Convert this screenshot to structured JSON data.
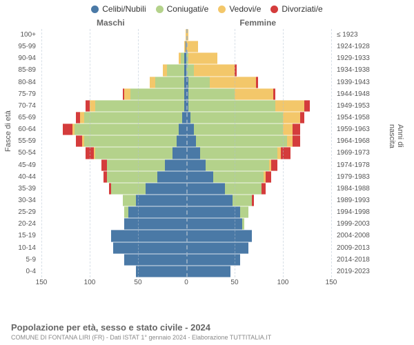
{
  "legend": [
    {
      "label": "Celibi/Nubili",
      "color": "#4a79a6"
    },
    {
      "label": "Coniugati/e",
      "color": "#b4d28b"
    },
    {
      "label": "Vedovi/e",
      "color": "#f3c76a"
    },
    {
      "label": "Divorziati/e",
      "color": "#d43c3c"
    }
  ],
  "genders": {
    "male": "Maschi",
    "female": "Femmine"
  },
  "axis_left_title": "Fasce di età",
  "axis_right_title": "Anni di nascita",
  "x_max": 150,
  "x_ticks": [
    150,
    100,
    50,
    0,
    50,
    100,
    150
  ],
  "grid_color": "#b0c0d0",
  "center_color": "#9fb4c8",
  "background": "#ffffff",
  "age_labels": [
    "100+",
    "95-99",
    "90-94",
    "85-89",
    "80-84",
    "75-79",
    "70-74",
    "65-69",
    "60-64",
    "55-59",
    "50-54",
    "45-49",
    "40-44",
    "35-39",
    "30-34",
    "25-29",
    "20-24",
    "15-19",
    "10-14",
    "5-9",
    "0-4"
  ],
  "birth_labels": [
    "≤ 1923",
    "1924-1928",
    "1929-1933",
    "1934-1938",
    "1939-1943",
    "1944-1948",
    "1949-1953",
    "1954-1958",
    "1959-1963",
    "1964-1968",
    "1969-1973",
    "1974-1978",
    "1979-1983",
    "1984-1988",
    "1989-1993",
    "1994-1998",
    "1999-2003",
    "2004-2008",
    "2009-2013",
    "2014-2018",
    "2019-2023"
  ],
  "rows": [
    {
      "male": [
        0,
        0,
        1,
        0
      ],
      "female": [
        0,
        0,
        2,
        0
      ]
    },
    {
      "male": [
        1,
        0,
        1,
        0
      ],
      "female": [
        0,
        0,
        12,
        0
      ]
    },
    {
      "male": [
        2,
        4,
        2,
        0
      ],
      "female": [
        0,
        2,
        30,
        0
      ]
    },
    {
      "male": [
        2,
        18,
        4,
        0
      ],
      "female": [
        0,
        8,
        42,
        2
      ]
    },
    {
      "male": [
        2,
        30,
        6,
        0
      ],
      "female": [
        2,
        22,
        48,
        2
      ]
    },
    {
      "male": [
        2,
        56,
        6,
        2
      ],
      "female": [
        2,
        48,
        40,
        2
      ]
    },
    {
      "male": [
        2,
        92,
        6,
        4
      ],
      "female": [
        2,
        90,
        30,
        6
      ]
    },
    {
      "male": [
        4,
        102,
        4,
        4
      ],
      "female": [
        4,
        96,
        18,
        4
      ]
    },
    {
      "male": [
        8,
        108,
        2,
        10
      ],
      "female": [
        8,
        92,
        10,
        8
      ]
    },
    {
      "male": [
        10,
        96,
        2,
        6
      ],
      "female": [
        10,
        94,
        6,
        8
      ]
    },
    {
      "male": [
        14,
        80,
        2,
        8
      ],
      "female": [
        14,
        80,
        4,
        10
      ]
    },
    {
      "male": [
        22,
        60,
        0,
        6
      ],
      "female": [
        20,
        66,
        2,
        6
      ]
    },
    {
      "male": [
        30,
        52,
        0,
        4
      ],
      "female": [
        28,
        52,
        2,
        6
      ]
    },
    {
      "male": [
        42,
        36,
        0,
        2
      ],
      "female": [
        40,
        38,
        0,
        4
      ]
    },
    {
      "male": [
        52,
        14,
        0,
        0
      ],
      "female": [
        48,
        20,
        0,
        2
      ]
    },
    {
      "male": [
        60,
        4,
        0,
        0
      ],
      "female": [
        56,
        8,
        0,
        0
      ]
    },
    {
      "male": [
        64,
        0,
        0,
        0
      ],
      "female": [
        58,
        2,
        0,
        0
      ]
    },
    {
      "male": [
        78,
        0,
        0,
        0
      ],
      "female": [
        68,
        0,
        0,
        0
      ]
    },
    {
      "male": [
        76,
        0,
        0,
        0
      ],
      "female": [
        64,
        0,
        0,
        0
      ]
    },
    {
      "male": [
        64,
        0,
        0,
        0
      ],
      "female": [
        56,
        0,
        0,
        0
      ]
    },
    {
      "male": [
        52,
        0,
        0,
        0
      ],
      "female": [
        46,
        0,
        0,
        0
      ]
    }
  ],
  "footer": {
    "title": "Popolazione per età, sesso e stato civile - 2024",
    "subtitle": "COMUNE DI FONTANA LIRI (FR) - Dati ISTAT 1° gennaio 2024 - Elaborazione TUTTITALIA.IT"
  }
}
